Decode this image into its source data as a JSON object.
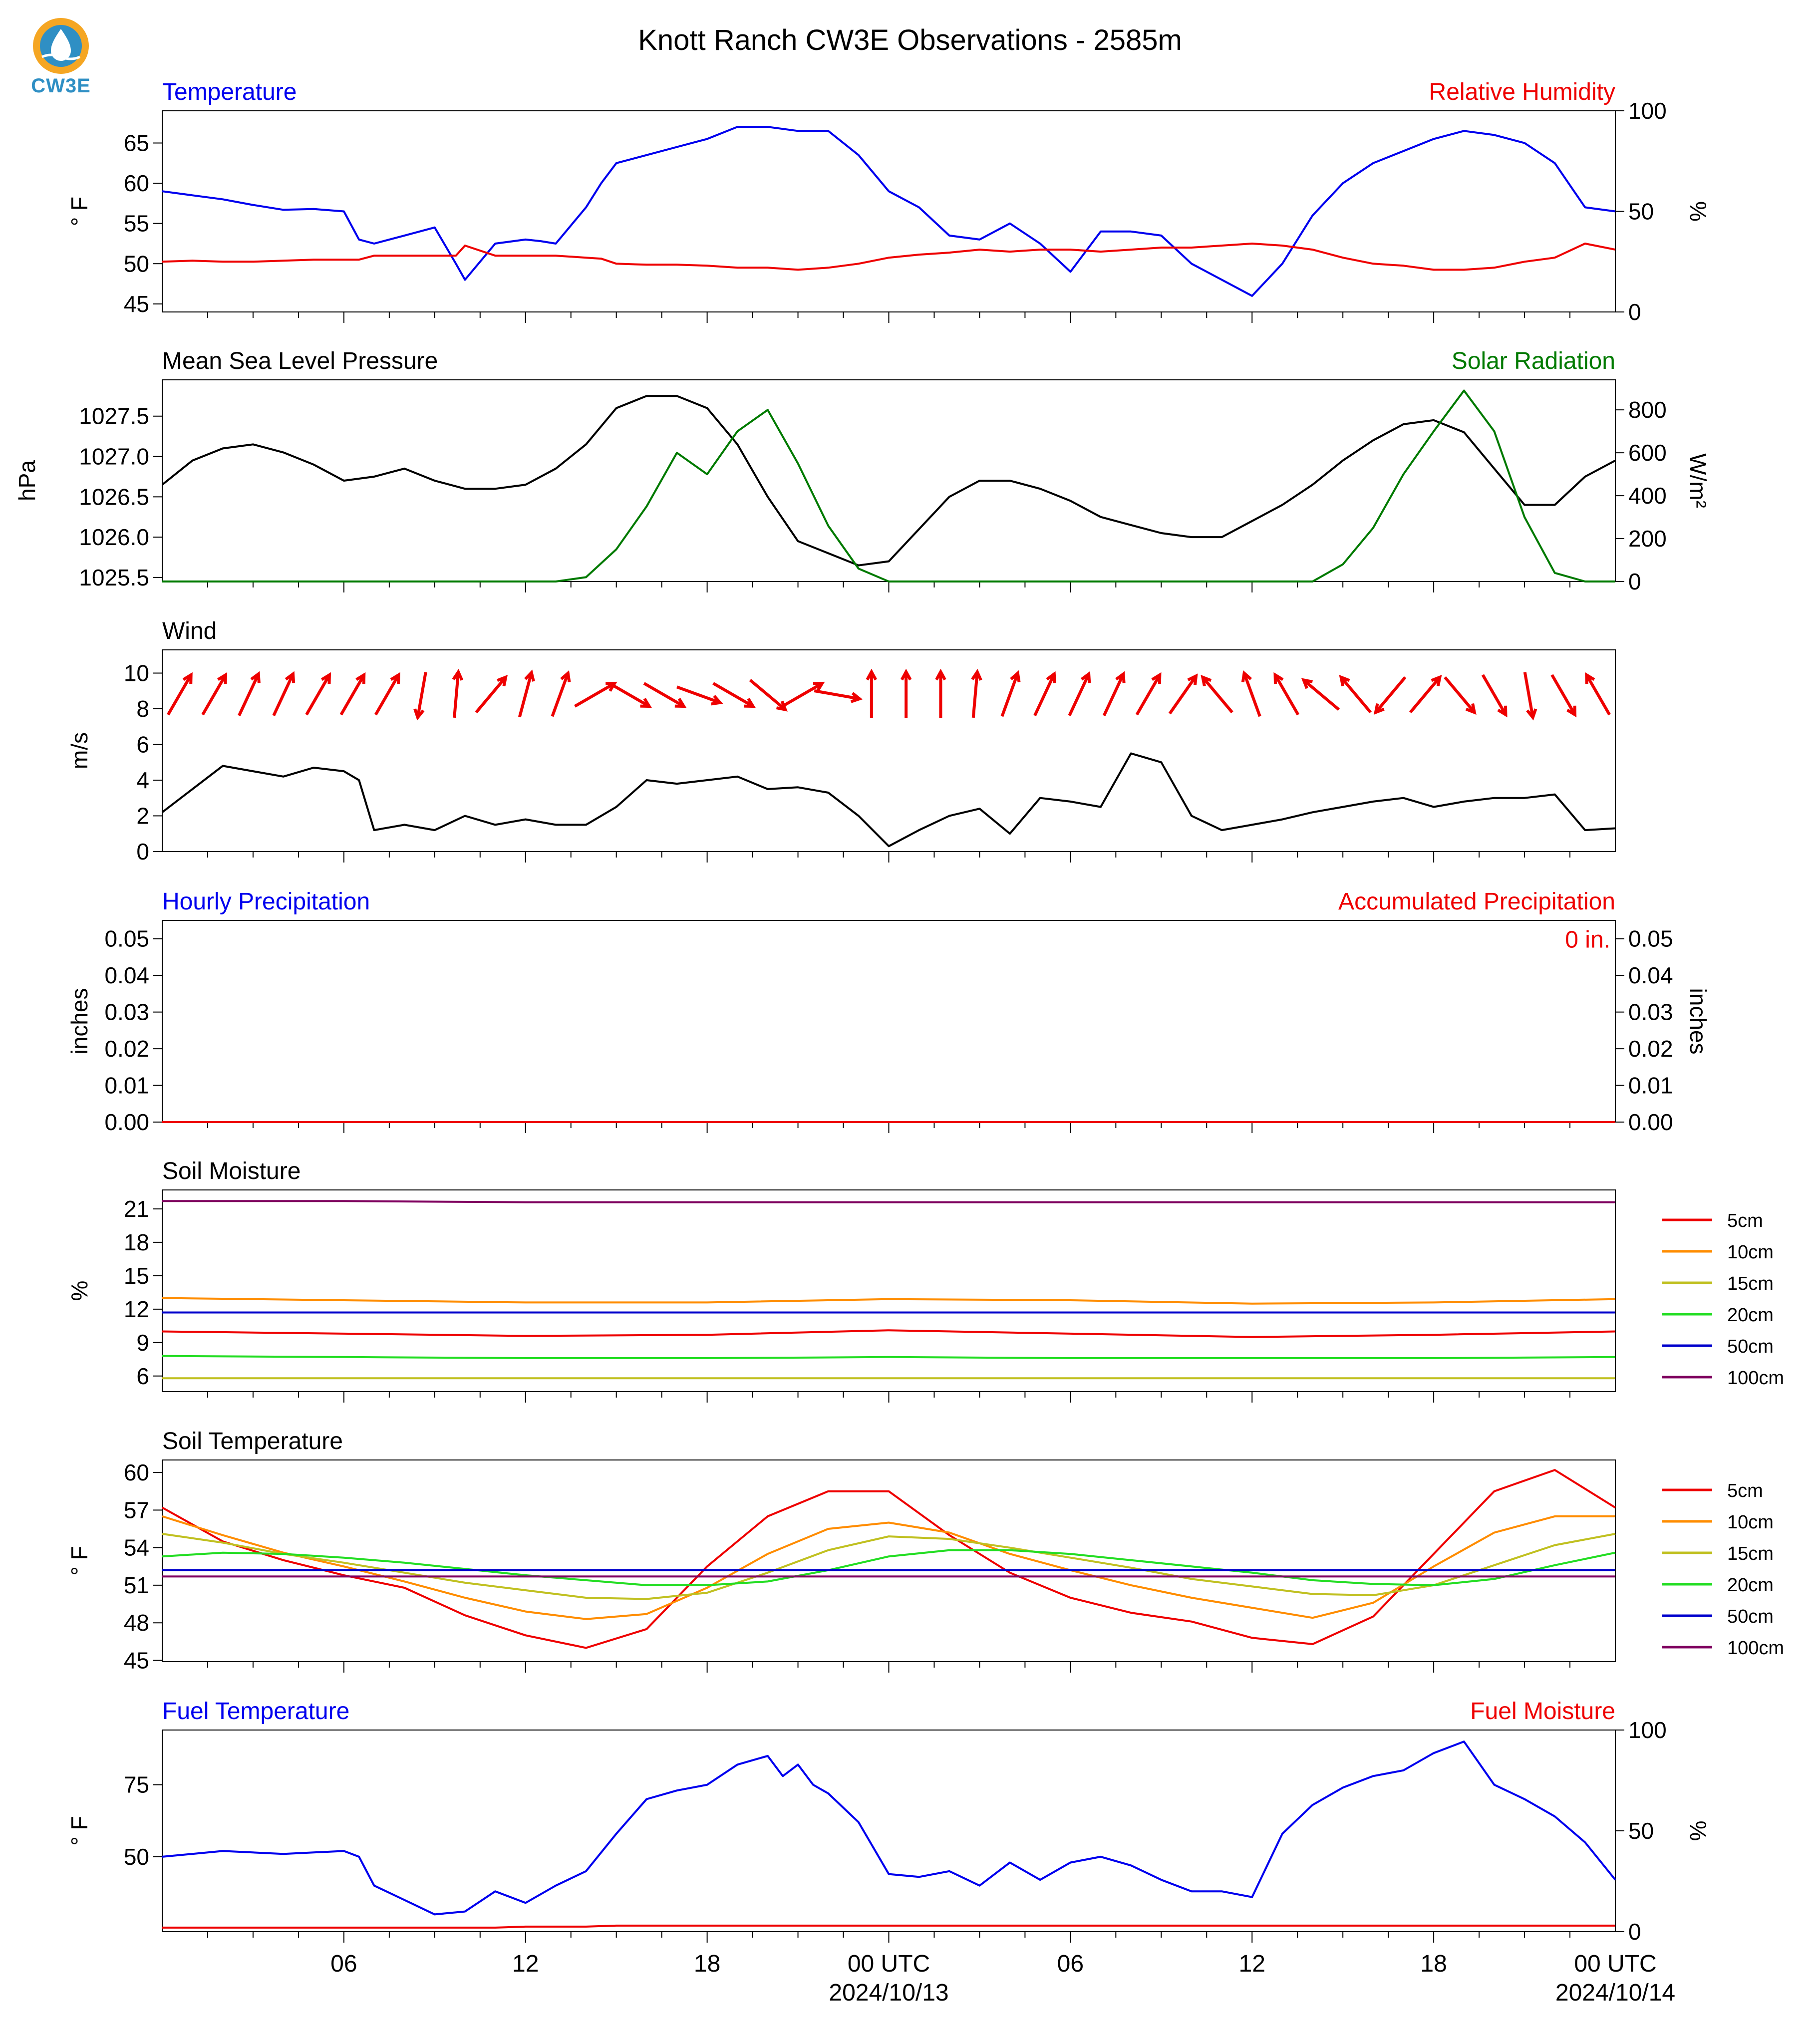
{
  "figure": {
    "title": "Knott Ranch CW3E Observations - 2585m",
    "logo_text": "CW3E",
    "logo_icon": "water-drop-globe-icon",
    "colors": {
      "blue": "#0000ee",
      "red": "#ee0000",
      "green": "#007a00",
      "black": "#000000",
      "orange": "#ff8c00",
      "olive": "#c0c020",
      "lime": "#22dd22",
      "navy": "#0000cc",
      "purple": "#800060"
    }
  },
  "x_axis": {
    "ticks": [
      "06",
      "12",
      "18",
      "00 UTC",
      "06",
      "12",
      "18",
      "00 UTC"
    ],
    "dates": [
      "2024/10/13",
      "2024/10/14"
    ]
  },
  "chart_data": [
    {
      "type": "line",
      "title_left": "Temperature",
      "title_right": "Relative Humidity",
      "ylabel": "° F",
      "ylabel_right": "%",
      "ylim": [
        44,
        69
      ],
      "yticks": [
        "45",
        "50",
        "55",
        "60",
        "65"
      ],
      "ylim_right": [
        0,
        100
      ],
      "yticks_right": [
        "0",
        "50",
        "100"
      ],
      "x": [
        0,
        1,
        2,
        3,
        4,
        5,
        6,
        6.5,
        7,
        8,
        9,
        9.7,
        10,
        11,
        12,
        12.5,
        13,
        14,
        14.5,
        15,
        16,
        17,
        18,
        19,
        20,
        21,
        22,
        23,
        24,
        25,
        26,
        27,
        28,
        29,
        30,
        31,
        32,
        33,
        34,
        35,
        36,
        37,
        38,
        39,
        40,
        41,
        42,
        43,
        44,
        45,
        46,
        47,
        48
      ],
      "series": [
        {
          "name": "Temperature",
          "color": "#0000ee",
          "axis": "left",
          "values": [
            59,
            58.5,
            58,
            57.3,
            56.7,
            56.8,
            56.5,
            53,
            52.5,
            53.5,
            54.5,
            50,
            48,
            52.5,
            53,
            52.8,
            52.5,
            57,
            60,
            62.5,
            63.5,
            64.5,
            65.5,
            67,
            67,
            66.5,
            66.5,
            63.5,
            59,
            57,
            53.5,
            53,
            55,
            52.5,
            49,
            54,
            54,
            53.5,
            50,
            48,
            46,
            50,
            56,
            60,
            62.5,
            64,
            65.5,
            66.5,
            66,
            65,
            62.5,
            57,
            56.5
          ]
        },
        {
          "name": "Relative Humidity",
          "color": "#ee0000",
          "axis": "right",
          "values": [
            25,
            25.5,
            25,
            25,
            25.5,
            26,
            26,
            26,
            28,
            28,
            28,
            28,
            33,
            28,
            28,
            28,
            28,
            27,
            26.5,
            24,
            23.5,
            23.5,
            23,
            22,
            22,
            21,
            22,
            24,
            27,
            28.5,
            29.5,
            31,
            30,
            31,
            31,
            30,
            31,
            32,
            32,
            33,
            34,
            33,
            31,
            27,
            24,
            23,
            21,
            21,
            22,
            25,
            27,
            34,
            31
          ]
        }
      ]
    },
    {
      "type": "line",
      "title_left": "Mean Sea Level Pressure",
      "title_right": "Solar Radiation",
      "ylabel": "hPa",
      "ylabel_right": "W/m²",
      "ylim": [
        1025.45,
        1027.95
      ],
      "yticks": [
        "1025.5",
        "1026.0",
        "1026.5",
        "1027.0",
        "1027.5"
      ],
      "ylim_right": [
        0,
        940
      ],
      "yticks_right": [
        "0",
        "200",
        "400",
        "600",
        "800"
      ],
      "x": [
        0,
        1,
        2,
        3,
        4,
        5,
        6,
        7,
        8,
        9,
        10,
        11,
        12,
        13,
        14,
        15,
        16,
        17,
        18,
        19,
        20,
        21,
        22,
        23,
        24,
        25,
        26,
        27,
        28,
        29,
        30,
        31,
        32,
        33,
        34,
        35,
        36,
        37,
        38,
        39,
        40,
        41,
        42,
        43,
        44,
        45,
        46,
        47,
        48
      ],
      "series": [
        {
          "name": "Mean Sea Level Pressure",
          "color": "#000000",
          "axis": "left",
          "values": [
            1026.65,
            1026.95,
            1027.1,
            1027.15,
            1027.05,
            1026.9,
            1026.7,
            1026.75,
            1026.85,
            1026.7,
            1026.6,
            1026.6,
            1026.65,
            1026.85,
            1027.15,
            1027.6,
            1027.75,
            1027.75,
            1027.6,
            1027.15,
            1026.5,
            1025.95,
            1025.8,
            1025.65,
            1025.7,
            1026.1,
            1026.5,
            1026.7,
            1026.7,
            1026.6,
            1026.45,
            1026.25,
            1026.15,
            1026.05,
            1026.0,
            1026.0,
            1026.2,
            1026.4,
            1026.65,
            1026.95,
            1027.2,
            1027.4,
            1027.45,
            1027.3,
            1026.85,
            1026.4,
            1026.4,
            1026.75,
            1026.95
          ]
        },
        {
          "name": "Solar Radiation",
          "color": "#007a00",
          "axis": "right",
          "values": [
            0,
            0,
            0,
            0,
            0,
            0,
            0,
            0,
            0,
            0,
            0,
            0,
            0,
            0,
            20,
            150,
            350,
            600,
            500,
            700,
            800,
            550,
            260,
            60,
            0,
            0,
            0,
            0,
            0,
            0,
            0,
            0,
            0,
            0,
            0,
            0,
            0,
            0,
            0,
            80,
            250,
            500,
            700,
            890,
            700,
            300,
            40,
            0,
            0
          ]
        }
      ]
    },
    {
      "type": "line",
      "title_left": "Wind",
      "ylabel": "m/s",
      "ylim": [
        0,
        11.3
      ],
      "yticks": [
        "0",
        "2",
        "4",
        "6",
        "8",
        "10"
      ],
      "x": [
        0,
        1,
        2,
        3,
        4,
        5,
        6,
        6.5,
        7,
        8,
        9,
        10,
        11,
        12,
        13,
        14,
        15,
        16,
        17,
        18,
        19,
        20,
        21,
        22,
        23,
        24,
        25,
        26,
        27,
        28,
        29,
        30,
        31,
        32,
        33,
        34,
        35,
        36,
        37,
        38,
        39,
        40,
        41,
        42,
        43,
        44,
        45,
        46,
        47,
        48
      ],
      "series": [
        {
          "name": "Wind",
          "color": "#000000",
          "axis": "left",
          "values": [
            2.2,
            3.5,
            4.8,
            4.5,
            4.2,
            4.7,
            4.5,
            4.0,
            1.2,
            1.5,
            1.2,
            2.0,
            1.5,
            1.8,
            1.5,
            1.5,
            2.5,
            4.0,
            3.8,
            4.0,
            4.2,
            3.5,
            3.6,
            3.3,
            2.0,
            0.3,
            1.2,
            2.0,
            2.4,
            1.0,
            3.0,
            2.8,
            2.5,
            5.5,
            5.0,
            2.0,
            1.2,
            1.5,
            1.8,
            2.2,
            2.5,
            2.8,
            3.0,
            2.5,
            2.8,
            3.0,
            3.0,
            3.2,
            1.2,
            1.3
          ]
        }
      ],
      "wind_barb_directions_deg": [
        30,
        30,
        25,
        25,
        30,
        30,
        30,
        190,
        5,
        40,
        15,
        20,
        60,
        120,
        120,
        110,
        120,
        130,
        60,
        100,
        0,
        0,
        0,
        5,
        20,
        25,
        25,
        25,
        30,
        35,
        320,
        340,
        330,
        310,
        320,
        220,
        40,
        140,
        150,
        170,
        150,
        330
      ]
    },
    {
      "type": "line",
      "title_left": "Hourly Precipitation",
      "title_right": "Accumulated Precipitation",
      "ylabel": "inches",
      "ylabel_right": "inches",
      "ylim": [
        0,
        0.055
      ],
      "yticks": [
        "0.00",
        "0.01",
        "0.02",
        "0.03",
        "0.04",
        "0.05"
      ],
      "yticks_right": [
        "0.00",
        "0.01",
        "0.02",
        "0.03",
        "0.04",
        "0.05"
      ],
      "accumulated_label": "0 in.",
      "x": [
        0,
        48
      ],
      "series": [
        {
          "name": "Hourly Precipitation",
          "color": "#0000ee",
          "axis": "left",
          "values": [
            0,
            0
          ]
        },
        {
          "name": "Accumulated Precipitation",
          "color": "#ee0000",
          "axis": "right",
          "values": [
            0,
            0
          ]
        }
      ]
    },
    {
      "type": "line",
      "title_left": "Soil Moisture",
      "ylabel": "%",
      "ylim": [
        4.6,
        22.7
      ],
      "yticks": [
        "6",
        "9",
        "12",
        "15",
        "18",
        "21"
      ],
      "legend": [
        "5cm",
        "10cm",
        "15cm",
        "20cm",
        "50cm",
        "100cm"
      ],
      "x": [
        0,
        6,
        12,
        18,
        24,
        30,
        36,
        42,
        48
      ],
      "series": [
        {
          "name": "5cm",
          "color": "#ee0000",
          "values": [
            10.0,
            9.8,
            9.6,
            9.7,
            10.1,
            9.8,
            9.5,
            9.7,
            10.0
          ]
        },
        {
          "name": "10cm",
          "color": "#ff8c00",
          "values": [
            13.0,
            12.8,
            12.6,
            12.6,
            12.9,
            12.8,
            12.5,
            12.6,
            12.9
          ]
        },
        {
          "name": "15cm",
          "color": "#c0c020",
          "values": [
            5.8,
            5.8,
            5.8,
            5.8,
            5.8,
            5.8,
            5.8,
            5.8,
            5.8
          ]
        },
        {
          "name": "20cm",
          "color": "#22dd22",
          "values": [
            7.8,
            7.7,
            7.6,
            7.6,
            7.7,
            7.6,
            7.6,
            7.6,
            7.7
          ]
        },
        {
          "name": "50cm",
          "color": "#0000cc",
          "values": [
            11.7,
            11.7,
            11.7,
            11.7,
            11.7,
            11.7,
            11.7,
            11.7,
            11.7
          ]
        },
        {
          "name": "100cm",
          "color": "#800060",
          "values": [
            21.7,
            21.7,
            21.6,
            21.6,
            21.6,
            21.6,
            21.6,
            21.6,
            21.6
          ]
        }
      ]
    },
    {
      "type": "line",
      "title_left": "Soil Temperature",
      "ylabel": "° F",
      "ylim": [
        44.9,
        61
      ],
      "yticks": [
        "45",
        "48",
        "51",
        "54",
        "57",
        "60"
      ],
      "legend": [
        "5cm",
        "10cm",
        "15cm",
        "20cm",
        "50cm",
        "100cm"
      ],
      "x": [
        0,
        2,
        4,
        6,
        8,
        10,
        12,
        14,
        16,
        18,
        20,
        22,
        24,
        26,
        28,
        30,
        32,
        34,
        36,
        38,
        40,
        42,
        44,
        46,
        48
      ],
      "series": [
        {
          "name": "5cm",
          "color": "#ee0000",
          "values": [
            57.2,
            54.5,
            53.0,
            51.8,
            50.8,
            48.6,
            47.0,
            46.0,
            47.5,
            52.5,
            56.5,
            58.5,
            58.5,
            55.0,
            52.0,
            50.0,
            48.8,
            48.1,
            46.8,
            46.3,
            48.5,
            53.5,
            58.5,
            60.2,
            57.2
          ]
        },
        {
          "name": "10cm",
          "color": "#ff8c00",
          "values": [
            56.5,
            55.0,
            53.6,
            52.5,
            51.3,
            50.0,
            48.9,
            48.3,
            48.7,
            50.8,
            53.5,
            55.5,
            56.0,
            55.2,
            53.5,
            52.2,
            51.0,
            50.0,
            49.2,
            48.4,
            49.6,
            52.5,
            55.2,
            56.5,
            56.5
          ]
        },
        {
          "name": "15cm",
          "color": "#c0c020",
          "values": [
            55.1,
            54.4,
            53.5,
            52.8,
            52.0,
            51.2,
            50.6,
            50.0,
            49.9,
            50.4,
            52.0,
            53.8,
            54.9,
            54.7,
            54.0,
            53.2,
            52.4,
            51.5,
            50.9,
            50.3,
            50.2,
            51.0,
            52.6,
            54.2,
            55.1
          ]
        },
        {
          "name": "20cm",
          "color": "#22dd22",
          "values": [
            53.3,
            53.6,
            53.5,
            53.2,
            52.8,
            52.3,
            51.8,
            51.4,
            51.0,
            51.0,
            51.3,
            52.2,
            53.3,
            53.8,
            53.8,
            53.5,
            53.0,
            52.5,
            52.0,
            51.4,
            51.1,
            51.0,
            51.5,
            52.6,
            53.6
          ]
        },
        {
          "name": "50cm",
          "color": "#0000cc",
          "values": [
            52.2,
            52.2,
            52.2,
            52.2,
            52.2,
            52.2,
            52.2,
            52.2,
            52.2,
            52.2,
            52.2,
            52.2,
            52.2,
            52.2,
            52.2,
            52.2,
            52.2,
            52.2,
            52.2,
            52.2,
            52.2,
            52.2,
            52.2,
            52.2,
            52.2
          ]
        },
        {
          "name": "100cm",
          "color": "#800060",
          "values": [
            51.7,
            51.7,
            51.7,
            51.7,
            51.7,
            51.7,
            51.7,
            51.7,
            51.7,
            51.7,
            51.7,
            51.7,
            51.7,
            51.7,
            51.7,
            51.7,
            51.7,
            51.7,
            51.7,
            51.7,
            51.7,
            51.7,
            51.7,
            51.7,
            51.7
          ]
        }
      ]
    },
    {
      "type": "line",
      "title_left": "Fuel Temperature",
      "title_right": "Fuel Moisture",
      "ylabel": "° F",
      "ylabel_right": "%",
      "ylim": [
        24,
        94
      ],
      "yticks": [
        "50",
        "75"
      ],
      "ylim_right": [
        0,
        100
      ],
      "yticks_right": [
        "0",
        "50",
        "100"
      ],
      "x": [
        0,
        2,
        4,
        6,
        6.5,
        7,
        8,
        9,
        10,
        11,
        12,
        13,
        14,
        15,
        16,
        17,
        18,
        19,
        20,
        20.5,
        21,
        21.5,
        22,
        23,
        24,
        25,
        26,
        27,
        28,
        29,
        30,
        31,
        32,
        33,
        34,
        35,
        36,
        37,
        38,
        39,
        40,
        41,
        42,
        43,
        44,
        45,
        46,
        47,
        48
      ],
      "series": [
        {
          "name": "Fuel Temperature",
          "color": "#0000ee",
          "axis": "left",
          "values": [
            50,
            52,
            51,
            52,
            50,
            40,
            35,
            30,
            31,
            38,
            34,
            40,
            45,
            58,
            70,
            73,
            75,
            82,
            85,
            78,
            82,
            75,
            72,
            62,
            44,
            43,
            45,
            40,
            48,
            42,
            48,
            50,
            47,
            42,
            38,
            38,
            36,
            58,
            68,
            74,
            78,
            80,
            86,
            90,
            75,
            70,
            64,
            55,
            42
          ]
        },
        {
          "name": "Fuel Moisture",
          "color": "#ee0000",
          "axis": "right",
          "values": [
            2,
            2,
            2,
            2,
            2,
            2,
            2,
            2,
            2,
            2,
            2.5,
            2.5,
            2.5,
            3,
            3,
            3,
            3,
            3,
            3,
            3,
            3,
            3,
            3,
            3,
            3,
            3,
            3,
            3,
            3,
            3,
            3,
            3,
            3,
            3,
            3,
            3,
            3,
            3,
            3,
            3,
            3,
            3,
            3,
            3,
            3,
            3,
            3,
            3,
            3
          ]
        }
      ]
    }
  ]
}
